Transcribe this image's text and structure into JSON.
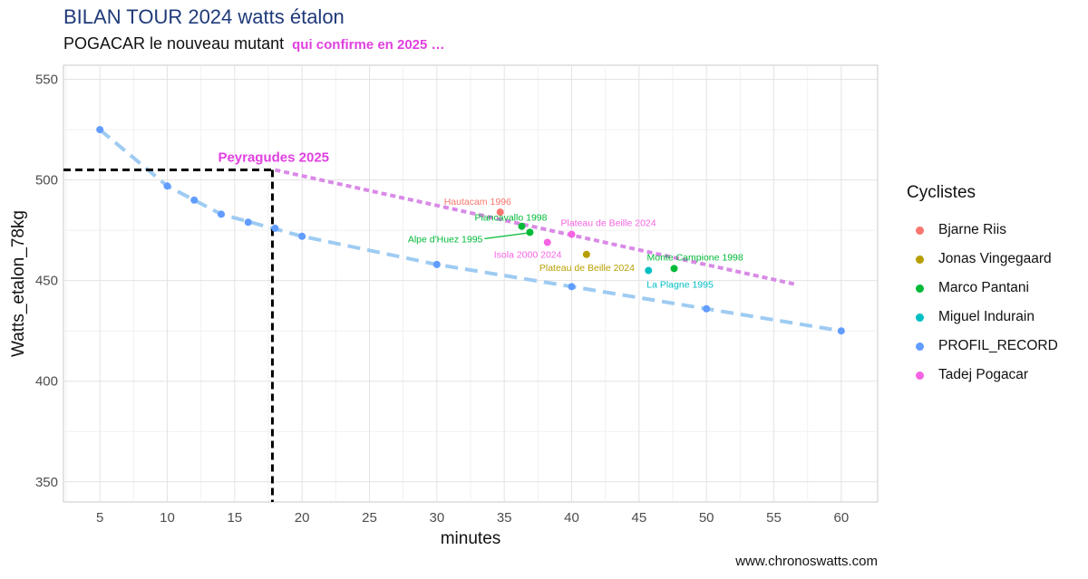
{
  "page": {
    "title": "BILAN TOUR 2024 watts étalon",
    "subtitle": "POGACAR le nouveau mutant",
    "subtitle_accent": "qui confirme en 2025 …",
    "source": "www.chronoswatts.com"
  },
  "chart_data": {
    "type": "scatter",
    "title": "BILAN TOUR 2024 watts étalon",
    "xlabel": "minutes",
    "ylabel": "Watts_etalon_78kg",
    "xlim": [
      2.3,
      62.7
    ],
    "ylim": [
      340,
      557
    ],
    "xticks": [
      5,
      10,
      15,
      20,
      25,
      30,
      35,
      40,
      45,
      50,
      55,
      60
    ],
    "yticks": [
      350,
      400,
      450,
      500,
      550
    ],
    "grid": true,
    "legend_title": "Cyclistes",
    "legend_position": "right",
    "series": [
      {
        "name": "Bjarne Riis",
        "color": "#F8766D",
        "points": [
          {
            "x": 34.7,
            "y": 484,
            "label": "Hautacam 1996"
          }
        ]
      },
      {
        "name": "Jonas Vingegaard",
        "color": "#B79F00",
        "points": [
          {
            "x": 41.1,
            "y": 463,
            "label": "Plateau de Beille 2024"
          }
        ]
      },
      {
        "name": "Marco Pantani",
        "color": "#00BA38",
        "points": [
          {
            "x": 36.3,
            "y": 477,
            "label": "Piancavallo 1998"
          },
          {
            "x": 36.9,
            "y": 474,
            "label": "Alpe d'Huez 1995"
          },
          {
            "x": 47.6,
            "y": 456,
            "label": "Monte Campione 1998"
          }
        ]
      },
      {
        "name": "Miguel Indurain",
        "color": "#00BFC4",
        "points": [
          {
            "x": 45.7,
            "y": 455,
            "label": "La Plagne 1995"
          }
        ]
      },
      {
        "name": "PROFIL_RECORD",
        "color": "#619CFF",
        "points": [
          {
            "x": 5,
            "y": 525
          },
          {
            "x": 10,
            "y": 497
          },
          {
            "x": 12,
            "y": 490
          },
          {
            "x": 14,
            "y": 483
          },
          {
            "x": 16,
            "y": 479
          },
          {
            "x": 18,
            "y": 476
          },
          {
            "x": 20,
            "y": 472
          },
          {
            "x": 30,
            "y": 458
          },
          {
            "x": 40,
            "y": 447
          },
          {
            "x": 50,
            "y": 436
          },
          {
            "x": 60,
            "y": 425
          }
        ]
      },
      {
        "name": "Tadej Pogacar",
        "color": "#F564E3",
        "points": [
          {
            "x": 40.0,
            "y": 473,
            "label": "Plateau de Beille 2024"
          },
          {
            "x": 38.2,
            "y": 469,
            "label": "Isola 2000 2024"
          }
        ]
      }
    ],
    "trend_lines": [
      {
        "name": "profil_record_trend",
        "color": "#9ecbf2",
        "style": "dashed",
        "points": [
          [
            5,
            525
          ],
          [
            10,
            497
          ],
          [
            14,
            483
          ],
          [
            20,
            472
          ],
          [
            30,
            458
          ],
          [
            40,
            447
          ],
          [
            50,
            436
          ],
          [
            60,
            425
          ]
        ]
      },
      {
        "name": "pogacar_trend",
        "color": "#d98ae6",
        "style": "dotted",
        "points": [
          [
            18,
            505
          ],
          [
            56.7,
            448
          ]
        ]
      }
    ],
    "reference": {
      "label": "Peyragudes 2025",
      "color": "#e040e0",
      "x": 17.8,
      "y": 505
    }
  }
}
